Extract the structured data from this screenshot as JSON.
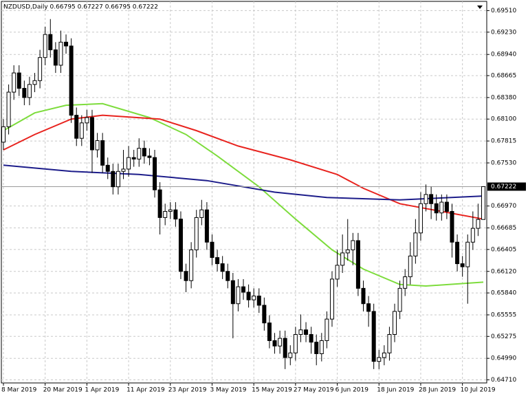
{
  "chart_data": {
    "type": "candlestick",
    "title": "NZDUSD,Daily  0.66795 0.67227 0.66795 0.67222",
    "categories": [
      "8 Mar 2019",
      null,
      null,
      null,
      null,
      null,
      null,
      null,
      "20 Mar 2019",
      null,
      null,
      null,
      null,
      null,
      null,
      null,
      "1 Apr 2019",
      null,
      null,
      null,
      null,
      null,
      null,
      null,
      "11 Apr 2019",
      null,
      null,
      null,
      null,
      null,
      null,
      null,
      "23 Apr 2019",
      null,
      null,
      null,
      null,
      null,
      null,
      null,
      "3 May 2019",
      null,
      null,
      null,
      null,
      null,
      null,
      null,
      "15 May 2019",
      null,
      null,
      null,
      null,
      null,
      null,
      null,
      "27 May 2019",
      null,
      null,
      null,
      null,
      null,
      null,
      null,
      "6 Jun 2019",
      null,
      null,
      null,
      null,
      null,
      null,
      null,
      "18 Jun 2019",
      null,
      null,
      null,
      null,
      null,
      null,
      null,
      "28 Jun 2019",
      null,
      null,
      null,
      null,
      null,
      null,
      null,
      "10 Jul 2019",
      null,
      null,
      null,
      null
    ],
    "open": [
      0.678,
      0.68,
      0.6845,
      0.687,
      0.685,
      0.6838,
      0.6855,
      0.686,
      0.689,
      0.692,
      0.69,
      0.688,
      0.691,
      0.6905,
      0.6815,
      0.6785,
      0.6805,
      0.6812,
      0.677,
      0.6782,
      0.675,
      0.6742,
      0.6722,
      0.6742,
      0.6745,
      0.676,
      0.6758,
      0.6772,
      0.6762,
      0.676,
      0.6718,
      0.6682,
      0.669,
      0.6692,
      0.668,
      0.6612,
      0.66,
      0.664,
      0.6682,
      0.6692,
      0.665,
      0.663,
      0.6622,
      0.6612,
      0.66,
      0.657,
      0.6592,
      0.6585,
      0.6575,
      0.658,
      0.6568,
      0.6545,
      0.6522,
      0.6515,
      0.6525,
      0.65,
      0.6506,
      0.653,
      0.6536,
      0.653,
      0.652,
      0.6505,
      0.6522,
      0.655,
      0.6602,
      0.662,
      0.6636,
      0.664,
      0.6652,
      0.659,
      0.657,
      0.656,
      0.6495,
      0.65,
      0.6506,
      0.653,
      0.656,
      0.659,
      0.6605,
      0.6632,
      0.6662,
      0.67,
      0.6712,
      0.67,
      0.6688,
      0.6702,
      0.669,
      0.665,
      0.6622,
      0.6618,
      0.665,
      0.6668,
      0.66795
    ],
    "high": [
      0.681,
      0.6855,
      0.688,
      0.688,
      0.686,
      0.6865,
      0.687,
      0.69,
      0.693,
      0.694,
      0.691,
      0.6925,
      0.692,
      0.6915,
      0.6825,
      0.6815,
      0.6822,
      0.6822,
      0.6792,
      0.6792,
      0.676,
      0.6752,
      0.6752,
      0.677,
      0.6775,
      0.677,
      0.6785,
      0.6782,
      0.6772,
      0.677,
      0.6728,
      0.67,
      0.6702,
      0.6702,
      0.669,
      0.6622,
      0.665,
      0.6692,
      0.6705,
      0.6702,
      0.666,
      0.664,
      0.6632,
      0.6622,
      0.661,
      0.6602,
      0.6602,
      0.6595,
      0.659,
      0.659,
      0.6578,
      0.6555,
      0.6532,
      0.6535,
      0.6535,
      0.6516,
      0.654,
      0.6556,
      0.6546,
      0.654,
      0.653,
      0.6532,
      0.656,
      0.6612,
      0.664,
      0.666,
      0.668,
      0.6662,
      0.6662,
      0.66,
      0.658,
      0.657,
      0.651,
      0.6516,
      0.654,
      0.657,
      0.66,
      0.6615,
      0.665,
      0.668,
      0.6715,
      0.6725,
      0.6722,
      0.6712,
      0.6712,
      0.6712,
      0.67,
      0.666,
      0.6632,
      0.666,
      0.669,
      0.67,
      0.67227
    ],
    "low": [
      0.677,
      0.679,
      0.6835,
      0.684,
      0.6828,
      0.6828,
      0.6845,
      0.685,
      0.688,
      0.689,
      0.687,
      0.687,
      0.6895,
      0.6805,
      0.6775,
      0.6775,
      0.6795,
      0.674,
      0.676,
      0.674,
      0.6732,
      0.6712,
      0.6712,
      0.6732,
      0.6735,
      0.6748,
      0.6748,
      0.6752,
      0.675,
      0.6708,
      0.666,
      0.6672,
      0.668,
      0.667,
      0.6602,
      0.6585,
      0.659,
      0.663,
      0.6672,
      0.664,
      0.662,
      0.6612,
      0.6602,
      0.659,
      0.6525,
      0.656,
      0.6575,
      0.6565,
      0.6565,
      0.6558,
      0.6535,
      0.6512,
      0.6505,
      0.6505,
      0.6485,
      0.649,
      0.6496,
      0.652,
      0.652,
      0.6505,
      0.649,
      0.6495,
      0.6512,
      0.654,
      0.6592,
      0.661,
      0.6626,
      0.662,
      0.658,
      0.656,
      0.654,
      0.6485,
      0.6485,
      0.649,
      0.6496,
      0.652,
      0.655,
      0.658,
      0.6595,
      0.6622,
      0.6652,
      0.669,
      0.668,
      0.6678,
      0.6678,
      0.668,
      0.663,
      0.6612,
      0.6605,
      0.657,
      0.664,
      0.6658,
      0.66795
    ],
    "close": [
      0.68,
      0.6845,
      0.687,
      0.685,
      0.6838,
      0.6855,
      0.686,
      0.689,
      0.692,
      0.69,
      0.688,
      0.691,
      0.6905,
      0.6815,
      0.6785,
      0.6805,
      0.6812,
      0.677,
      0.6782,
      0.675,
      0.6742,
      0.6722,
      0.6742,
      0.6745,
      0.676,
      0.6758,
      0.6772,
      0.6762,
      0.676,
      0.6718,
      0.6682,
      0.669,
      0.6692,
      0.668,
      0.6612,
      0.66,
      0.664,
      0.6682,
      0.6692,
      0.665,
      0.663,
      0.6622,
      0.6612,
      0.66,
      0.657,
      0.6592,
      0.6585,
      0.6575,
      0.658,
      0.6568,
      0.6545,
      0.6522,
      0.6515,
      0.6525,
      0.65,
      0.6506,
      0.653,
      0.6536,
      0.653,
      0.652,
      0.6505,
      0.6522,
      0.655,
      0.6602,
      0.662,
      0.6636,
      0.664,
      0.6652,
      0.659,
      0.657,
      0.656,
      0.6495,
      0.65,
      0.6506,
      0.653,
      0.656,
      0.659,
      0.6605,
      0.6632,
      0.6662,
      0.67,
      0.6712,
      0.67,
      0.6688,
      0.6702,
      0.669,
      0.665,
      0.6622,
      0.6618,
      0.665,
      0.6668,
      0.66795,
      0.67222
    ],
    "up_color": "#ffffff",
    "down_color": "#000000",
    "wick_color": "#000000",
    "moving_averages": [
      {
        "color": "#7ddc3c",
        "x": [
          0,
          6,
          12,
          19,
          28,
          35,
          41,
          49,
          56,
          63,
          69,
          76,
          81,
          92
        ],
        "values": [
          0.6795,
          0.6818,
          0.6828,
          0.683,
          0.6812,
          0.679,
          0.6762,
          0.6722,
          0.668,
          0.664,
          0.6615,
          0.6595,
          0.6593,
          0.6598
        ]
      },
      {
        "color": "#e8231e",
        "x": [
          0,
          6,
          13,
          19,
          30,
          37,
          45,
          55,
          64,
          69,
          76,
          84,
          92
        ],
        "values": [
          0.677,
          0.679,
          0.681,
          0.6815,
          0.681,
          0.6795,
          0.6775,
          0.6757,
          0.6738,
          0.672,
          0.67,
          0.669,
          0.668
        ]
      },
      {
        "color": "#1c1c8a",
        "x": [
          0,
          13,
          26,
          39,
          52,
          62,
          76,
          92
        ],
        "values": [
          0.675,
          0.6742,
          0.6738,
          0.673,
          0.6715,
          0.6708,
          0.6705,
          0.671
        ]
      }
    ],
    "current_price": 0.67222,
    "ylim": [
      0.6467,
      0.6963
    ],
    "yticks": [
      {
        "value": 0.6951,
        "label": "0.69510"
      },
      {
        "value": 0.6923,
        "label": "0.69230"
      },
      {
        "value": 0.6894,
        "label": "0.68940"
      },
      {
        "value": 0.68665,
        "label": "0.68665"
      },
      {
        "value": 0.6838,
        "label": "0.68380"
      },
      {
        "value": 0.681,
        "label": "0.68100"
      },
      {
        "value": 0.67815,
        "label": "0.67815"
      },
      {
        "value": 0.6753,
        "label": "0.67530"
      },
      {
        "value": 0.6697,
        "label": "0.66970"
      },
      {
        "value": 0.66685,
        "label": "0.66685"
      },
      {
        "value": 0.66405,
        "label": "0.66405"
      },
      {
        "value": 0.6612,
        "label": "0.66120"
      },
      {
        "value": 0.6584,
        "label": "0.65840"
      },
      {
        "value": 0.65555,
        "label": "0.65555"
      },
      {
        "value": 0.65275,
        "label": "0.65275"
      },
      {
        "value": 0.6499,
        "label": "0.64990"
      },
      {
        "value": 0.6471,
        "label": "0.64710"
      }
    ],
    "grid": true
  }
}
